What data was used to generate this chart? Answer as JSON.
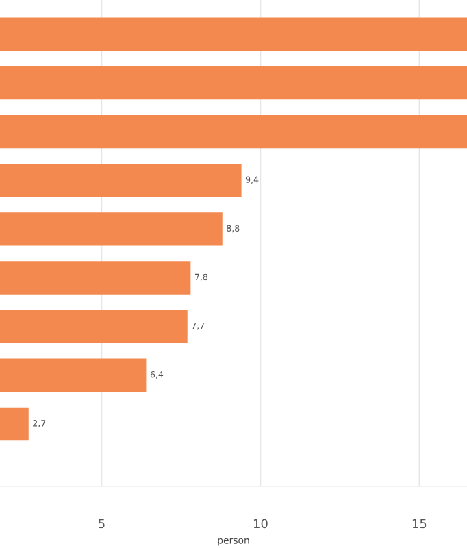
{
  "chart_data": {
    "type": "bar",
    "orientation": "horizontal",
    "xlabel": "person",
    "categories": [
      null,
      null,
      null,
      null,
      null,
      null,
      null,
      null,
      null
    ],
    "values": [
      16.5,
      16.5,
      16.5,
      9.4,
      8.8,
      7.8,
      7.7,
      6.4,
      2.7
    ],
    "value_labels": [
      null,
      null,
      null,
      "9,4",
      "8,8",
      "7,8",
      "7,7",
      "6,4",
      "2,7"
    ],
    "color": "#f4894f",
    "xlim": [
      1.8,
      16.5
    ],
    "xticks": [
      5,
      10,
      15
    ],
    "grid": "x"
  }
}
